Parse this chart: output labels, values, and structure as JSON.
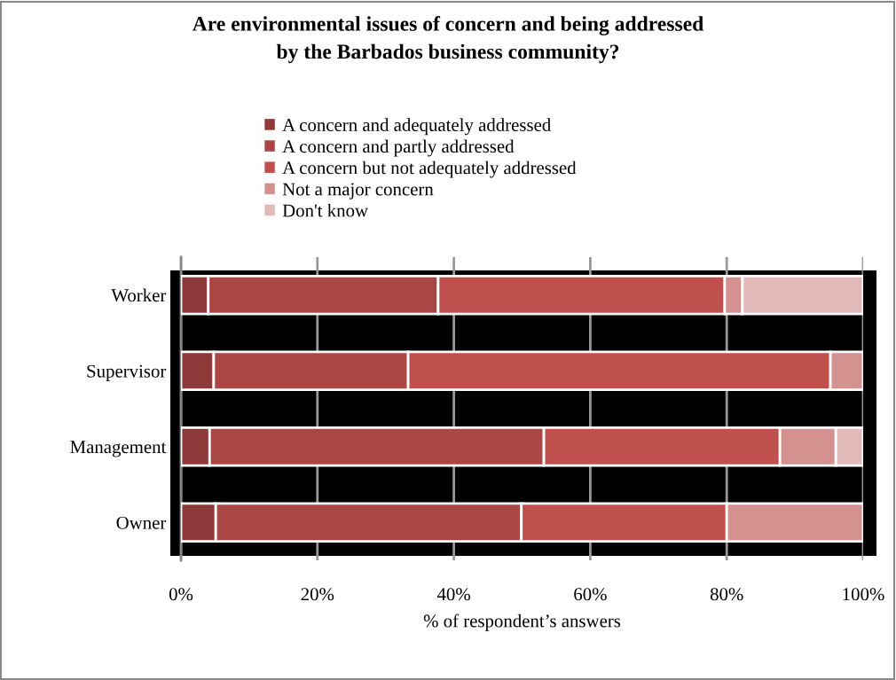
{
  "chart_data": {
    "type": "bar",
    "orientation": "horizontal",
    "stacked": true,
    "title": "Are environmental issues of concern and being addressed\nby the Barbados business community?",
    "xlabel": "% of respondent’s answers",
    "categories": [
      "Worker",
      "Supervisor",
      "Management",
      "Owner"
    ],
    "series": [
      {
        "name": "A concern and adequately addressed",
        "color": "#8e3a3a",
        "values": [
          4.0,
          4.8,
          4.2,
          5.1
        ]
      },
      {
        "name": "A concern and partly addressed",
        "color": "#a94745",
        "values": [
          33.7,
          28.5,
          49.0,
          44.8
        ]
      },
      {
        "name": "A concern but not adequately addressed",
        "color": "#c0504d",
        "values": [
          42.0,
          61.9,
          34.6,
          30.1
        ]
      },
      {
        "name": "Not a major concern",
        "color": "#d39190",
        "values": [
          2.6,
          4.8,
          8.2,
          20.0
        ]
      },
      {
        "name": "Don't know",
        "color": "#e2baba",
        "values": [
          17.7,
          null,
          4.0,
          null
        ]
      }
    ],
    "xlim": [
      0,
      100
    ],
    "xticks": [
      {
        "value": 0,
        "label": "0%"
      },
      {
        "value": 20,
        "label": "20%"
      },
      {
        "value": 40,
        "label": "40%"
      },
      {
        "value": 60,
        "label": "60%"
      },
      {
        "value": 80,
        "label": "80%"
      },
      {
        "value": 100,
        "label": "100%"
      }
    ],
    "grid": "x",
    "legend": "top"
  }
}
